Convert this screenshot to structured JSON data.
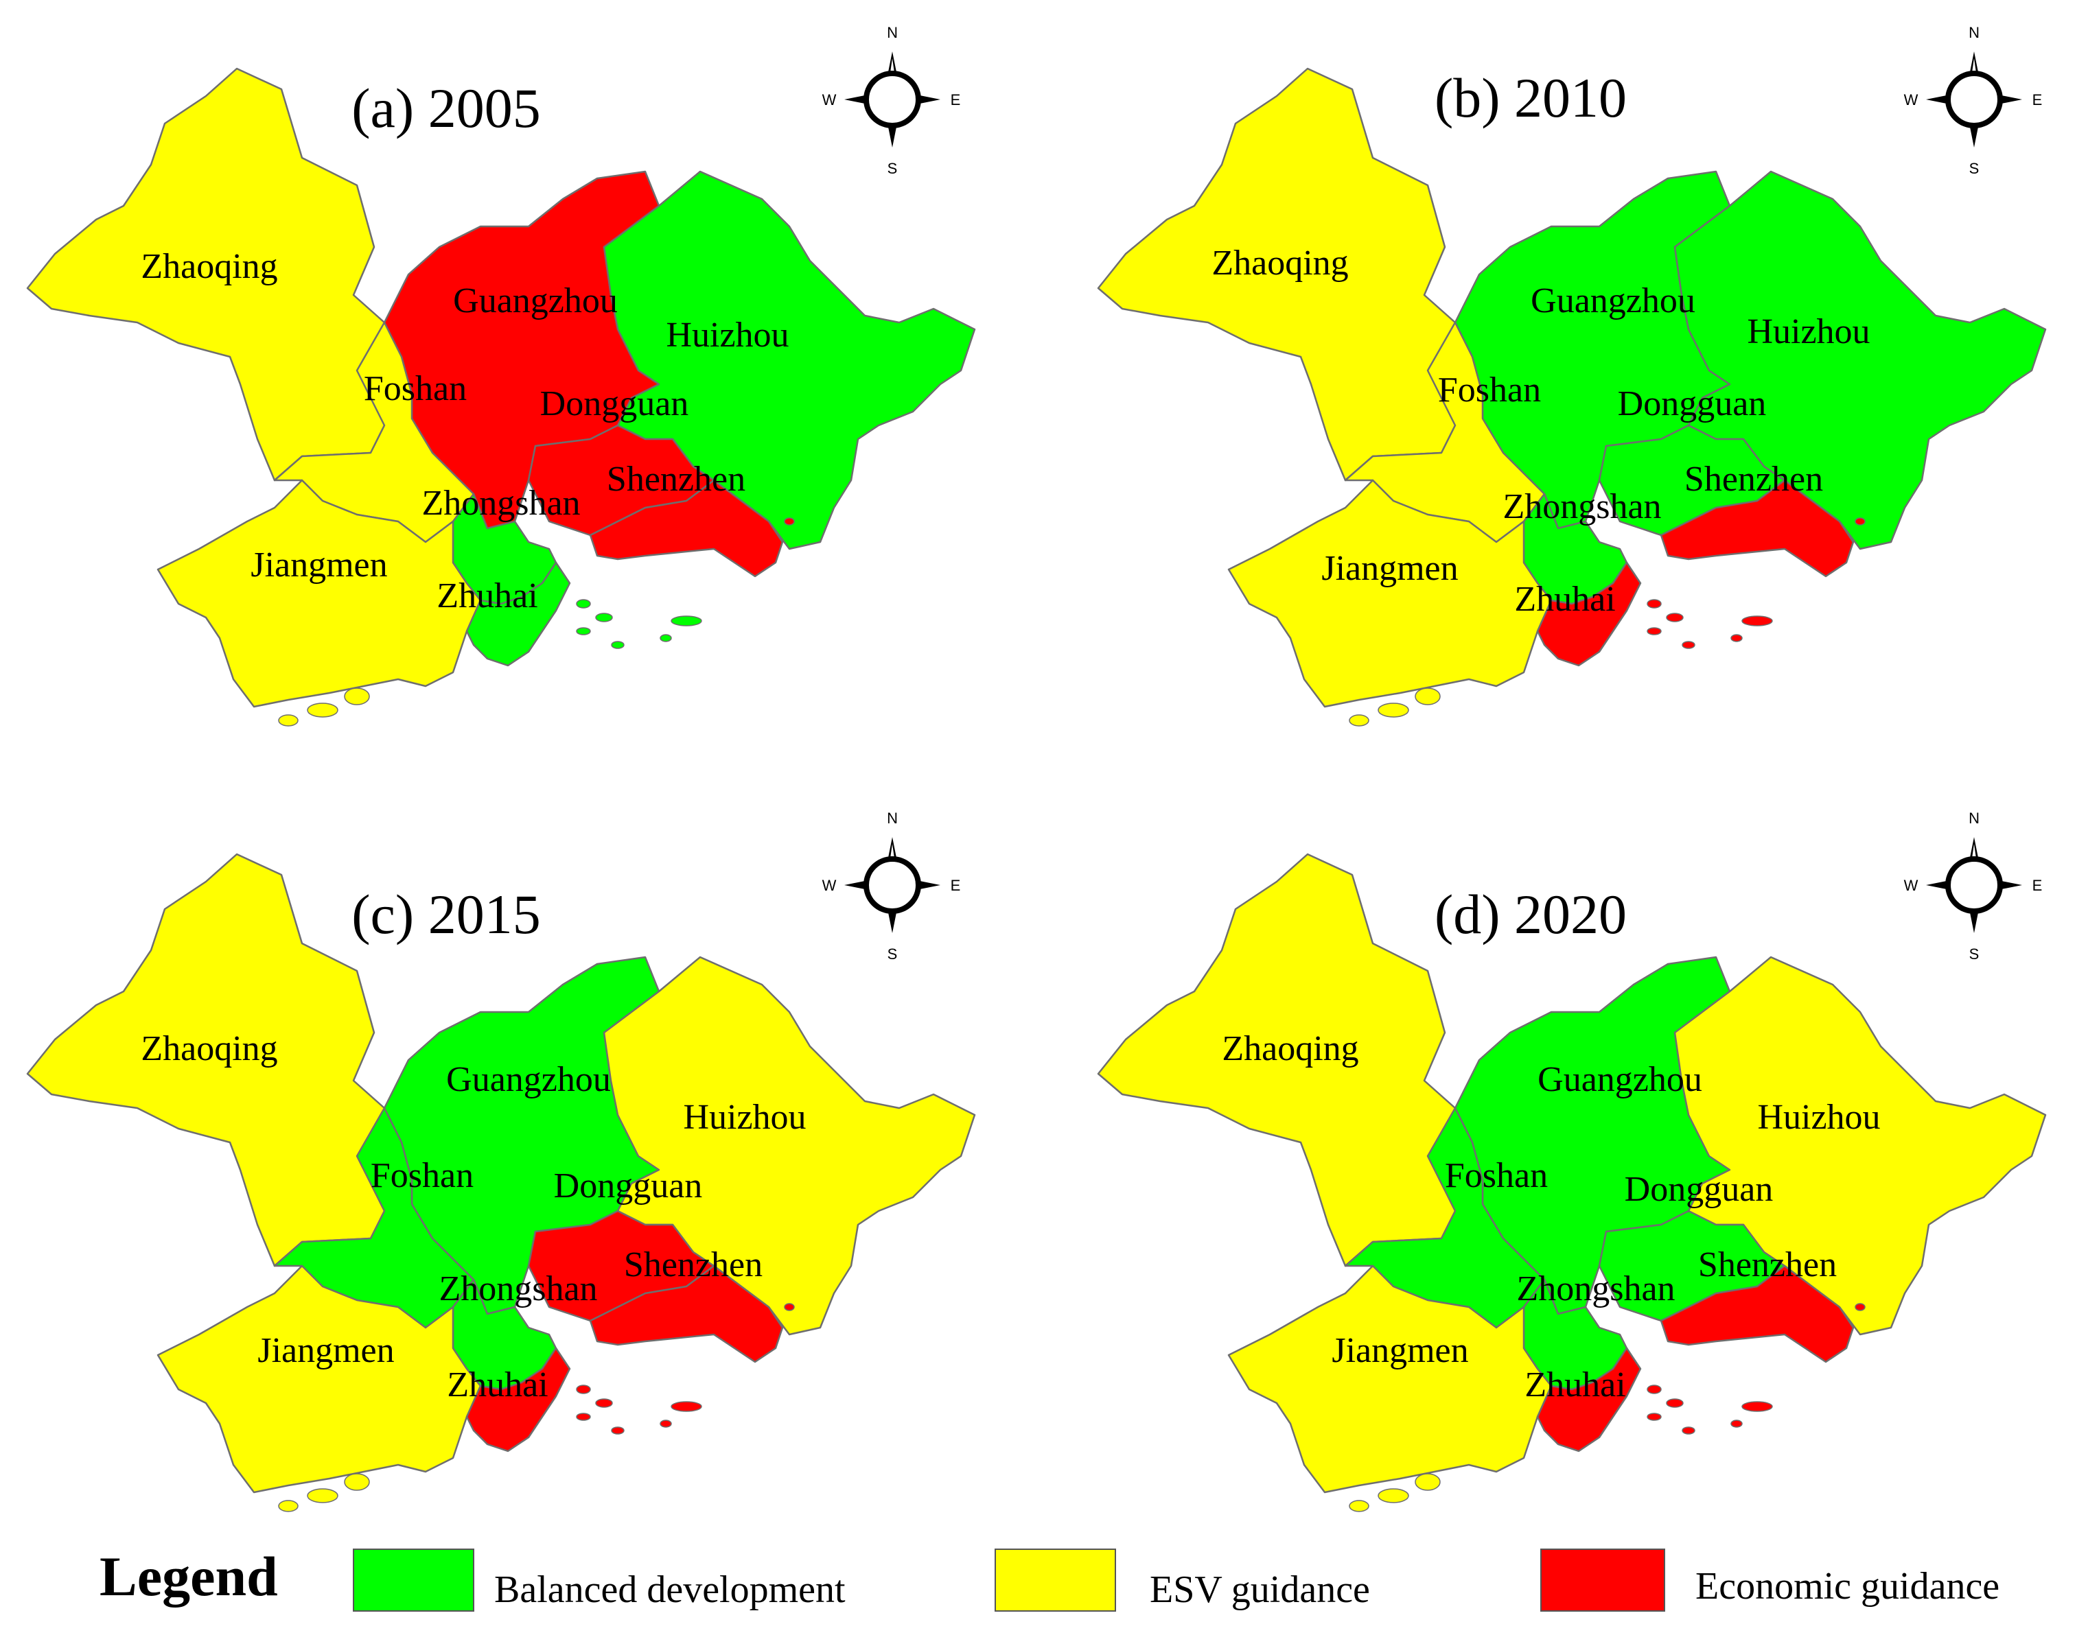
{
  "colors": {
    "balanced": "#00ff00",
    "esv": "#ffff00",
    "economic": "#ff0000"
  },
  "cities": [
    "Zhaoqing",
    "Guangzhou",
    "Huizhou",
    "Foshan",
    "Dongguan",
    "Shenzhen",
    "Zhongshan",
    "Jiangmen",
    "Zhuhai"
  ],
  "compass": {
    "n": "N",
    "s": "S",
    "e": "E",
    "w": "W"
  },
  "panels": [
    {
      "title": "(a) 2005",
      "categories": {
        "Zhaoqing": "esv",
        "Guangzhou": "economic",
        "Huizhou": "balanced",
        "Foshan": "esv",
        "Dongguan": "economic",
        "Shenzhen": "economic",
        "Zhongshan": "balanced",
        "Jiangmen": "esv",
        "Zhuhai": "balanced"
      }
    },
    {
      "title": "(b) 2010",
      "categories": {
        "Zhaoqing": "esv",
        "Guangzhou": "balanced",
        "Huizhou": "balanced",
        "Foshan": "esv",
        "Dongguan": "balanced",
        "Shenzhen": "economic",
        "Zhongshan": "balanced",
        "Jiangmen": "esv",
        "Zhuhai": "economic"
      }
    },
    {
      "title": "(c) 2015",
      "categories": {
        "Zhaoqing": "esv",
        "Guangzhou": "balanced",
        "Huizhou": "esv",
        "Foshan": "balanced",
        "Dongguan": "economic",
        "Shenzhen": "economic",
        "Zhongshan": "balanced",
        "Jiangmen": "esv",
        "Zhuhai": "economic"
      }
    },
    {
      "title": "(d) 2020",
      "categories": {
        "Zhaoqing": "esv",
        "Guangzhou": "balanced",
        "Huizhou": "esv",
        "Foshan": "balanced",
        "Dongguan": "balanced",
        "Shenzhen": "economic",
        "Zhongshan": "balanced",
        "Jiangmen": "esv",
        "Zhuhai": "economic"
      }
    }
  ],
  "legend": {
    "title": "Legend",
    "items": [
      {
        "label": "Balanced development",
        "category": "balanced"
      },
      {
        "label": "ESV guidance",
        "category": "esv"
      },
      {
        "label": "Economic guidance",
        "category": "economic"
      }
    ]
  }
}
